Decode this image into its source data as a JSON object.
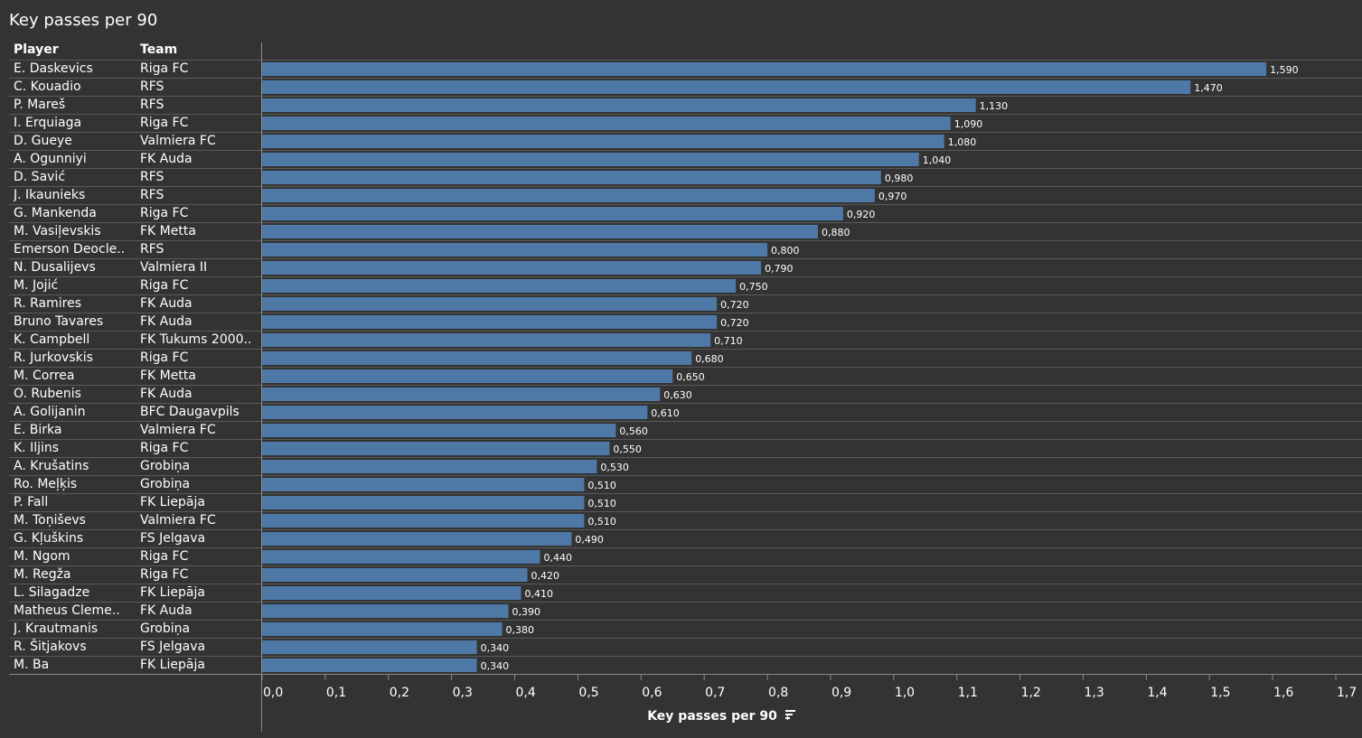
{
  "title": "Key passes per 90",
  "table_headers": {
    "player": "Player",
    "team": "Team"
  },
  "colors": {
    "bar": "#4e79a7",
    "background": "#333333",
    "text": "#ffffff"
  },
  "sort_icon": "sort-descending-icon",
  "chart_data": {
    "type": "bar",
    "orientation": "horizontal",
    "title": "Key passes per 90",
    "xlabel": "Key passes per 90",
    "xlim": [
      0,
      1.7
    ],
    "xticks": [
      "0,0",
      "0,1",
      "0,2",
      "0,3",
      "0,4",
      "0,5",
      "0,6",
      "0,7",
      "0,8",
      "0,9",
      "1,0",
      "1,1",
      "1,2",
      "1,3",
      "1,4",
      "1,5",
      "1,6",
      "1,7"
    ],
    "grid": false,
    "rows": [
      {
        "player": "E. Daskevics",
        "team": "Riga FC",
        "value": 1.59,
        "label": "1,590"
      },
      {
        "player": "C. Kouadio",
        "team": "RFS",
        "value": 1.47,
        "label": "1,470"
      },
      {
        "player": "P. Mareš",
        "team": "RFS",
        "value": 1.13,
        "label": "1,130"
      },
      {
        "player": "I. Erquiaga",
        "team": "Riga FC",
        "value": 1.09,
        "label": "1,090"
      },
      {
        "player": "D. Gueye",
        "team": "Valmiera FC",
        "value": 1.08,
        "label": "1,080"
      },
      {
        "player": "A. Ogunniyi",
        "team": "FK Auda",
        "value": 1.04,
        "label": "1,040"
      },
      {
        "player": "D. Savić",
        "team": "RFS",
        "value": 0.98,
        "label": "0,980"
      },
      {
        "player": "J. Ikaunieks",
        "team": "RFS",
        "value": 0.97,
        "label": "0,970"
      },
      {
        "player": "G. Mankenda",
        "team": "Riga FC",
        "value": 0.92,
        "label": "0,920"
      },
      {
        "player": "M. Vasiļevskis",
        "team": "FK Metta",
        "value": 0.88,
        "label": "0,880"
      },
      {
        "player": "Emerson Deocle..",
        "team": "RFS",
        "value": 0.8,
        "label": "0,800"
      },
      {
        "player": "N. Dusalijevs",
        "team": "Valmiera II",
        "value": 0.79,
        "label": "0,790"
      },
      {
        "player": "M. Jojić",
        "team": "Riga FC",
        "value": 0.75,
        "label": "0,750"
      },
      {
        "player": "R. Ramires",
        "team": "FK Auda",
        "value": 0.72,
        "label": "0,720"
      },
      {
        "player": "Bruno Tavares",
        "team": "FK Auda",
        "value": 0.72,
        "label": "0,720"
      },
      {
        "player": "K. Campbell",
        "team": "FK Tukums 2000..",
        "value": 0.71,
        "label": "0,710"
      },
      {
        "player": "R. Jurkovskis",
        "team": "Riga FC",
        "value": 0.68,
        "label": "0,680"
      },
      {
        "player": "M. Correa",
        "team": "FK Metta",
        "value": 0.65,
        "label": "0,650"
      },
      {
        "player": "O. Rubenis",
        "team": "FK Auda",
        "value": 0.63,
        "label": "0,630"
      },
      {
        "player": "A. Golijanin",
        "team": "BFC Daugavpils",
        "value": 0.61,
        "label": "0,610"
      },
      {
        "player": "E. Birka",
        "team": "Valmiera FC",
        "value": 0.56,
        "label": "0,560"
      },
      {
        "player": "K. Iljins",
        "team": "Riga FC",
        "value": 0.55,
        "label": "0,550"
      },
      {
        "player": "A. Krušatins",
        "team": "Grobiņa",
        "value": 0.53,
        "label": "0,530"
      },
      {
        "player": "Ro. Meļķis",
        "team": "Grobiņa",
        "value": 0.51,
        "label": "0,510"
      },
      {
        "player": "P. Fall",
        "team": "FK Liepāja",
        "value": 0.51,
        "label": "0,510"
      },
      {
        "player": "M. Toņiševs",
        "team": "Valmiera FC",
        "value": 0.51,
        "label": "0,510"
      },
      {
        "player": "G. Kļuškins",
        "team": "FS Jelgava",
        "value": 0.49,
        "label": "0,490"
      },
      {
        "player": "M. Ngom",
        "team": "Riga FC",
        "value": 0.44,
        "label": "0,440"
      },
      {
        "player": "M. Regža",
        "team": "Riga FC",
        "value": 0.42,
        "label": "0,420"
      },
      {
        "player": "L. Silagadze",
        "team": "FK Liepāja",
        "value": 0.41,
        "label": "0,410"
      },
      {
        "player": "Matheus Cleme..",
        "team": "FK Auda",
        "value": 0.39,
        "label": "0,390"
      },
      {
        "player": "J. Krautmanis",
        "team": "Grobiņa",
        "value": 0.38,
        "label": "0,380"
      },
      {
        "player": "R. Šitjakovs",
        "team": "FS Jelgava",
        "value": 0.34,
        "label": "0,340"
      },
      {
        "player": "M. Ba",
        "team": "FK Liepāja",
        "value": 0.34,
        "label": "0,340"
      }
    ]
  }
}
